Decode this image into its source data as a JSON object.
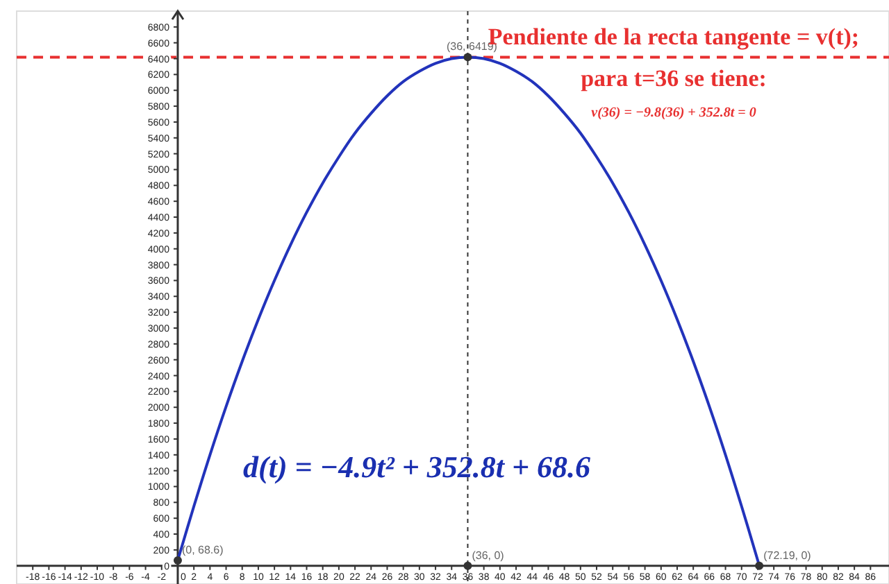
{
  "chart_data": {
    "type": "line",
    "title": "Pendiente de la recta tangente = v(t);",
    "subtitle": "para t=36 se tiene:",
    "annotations": [
      "v(36) = −9.8(36) + 352.8t = 0",
      "d(t) = −4.9t² + 352.8t + 68.6",
      {
        "text": "(36, 6419)",
        "x": 36,
        "y": 6419
      },
      {
        "text": "(0, 68.6)",
        "x": 0,
        "y": 68.6
      },
      {
        "text": "(36, 0)",
        "x": 36,
        "y": 0
      },
      {
        "text": "(72.19, 0)",
        "x": 72.19,
        "y": 0
      }
    ],
    "series": [
      {
        "color": "#2233bb",
        "x": [
          0,
          2,
          4,
          6,
          8,
          10,
          12,
          14,
          16,
          18,
          20,
          22,
          24,
          26,
          28,
          30,
          32,
          34,
          36,
          38,
          40,
          42,
          44,
          46,
          48,
          50,
          52,
          54,
          56,
          58,
          60,
          62,
          64,
          66,
          68,
          70,
          72,
          72.19
        ],
        "values": [
          70,
          750,
          1400,
          2010,
          2580,
          3110,
          3600,
          4050,
          4460,
          4830,
          5160,
          5460,
          5710,
          5930,
          6110,
          6240,
          6340,
          6400,
          6419,
          6400,
          6340,
          6240,
          6110,
          5930,
          5710,
          5460,
          5160,
          4830,
          4460,
          4050,
          3600,
          3110,
          2580,
          2010,
          1400,
          750,
          70,
          0
        ]
      },
      {
        "type": "scatter",
        "color": "#333333",
        "x": [
          0,
          36,
          36,
          72.19
        ],
        "values": [
          68.6,
          6419,
          0,
          0
        ]
      }
    ],
    "xlim": [
      -20,
      88.3
    ],
    "ylim": [
      -230,
      7000
    ],
    "xticks": [
      -18,
      -16,
      -14,
      -12,
      -10,
      -8,
      -6,
      -4,
      -2,
      0,
      2,
      4,
      6,
      8,
      10,
      12,
      14,
      16,
      18,
      20,
      22,
      24,
      26,
      28,
      30,
      32,
      34,
      36,
      38,
      40,
      42,
      44,
      46,
      48,
      50,
      52,
      54,
      56,
      58,
      60,
      62,
      64,
      66,
      68,
      70,
      72,
      74,
      76,
      78,
      80,
      82,
      84,
      86
    ],
    "yticks": [
      0,
      200,
      400,
      600,
      800,
      1000,
      1200,
      1400,
      1600,
      1800,
      2000,
      2200,
      2400,
      2600,
      2800,
      3000,
      3200,
      3400,
      3600,
      3800,
      4000,
      4200,
      4400,
      4600,
      4800,
      5000,
      5200,
      5400,
      5600,
      5800,
      6000,
      6200,
      6400,
      6600,
      6800
    ],
    "ref_lines": [
      {
        "axis": "y",
        "value": 6419,
        "color": "#e83030",
        "line_style": "dashed"
      },
      {
        "axis": "x",
        "value": 36,
        "color": "#333333",
        "line_style": "dotted"
      }
    ],
    "grid": false,
    "line_style": "solid"
  }
}
